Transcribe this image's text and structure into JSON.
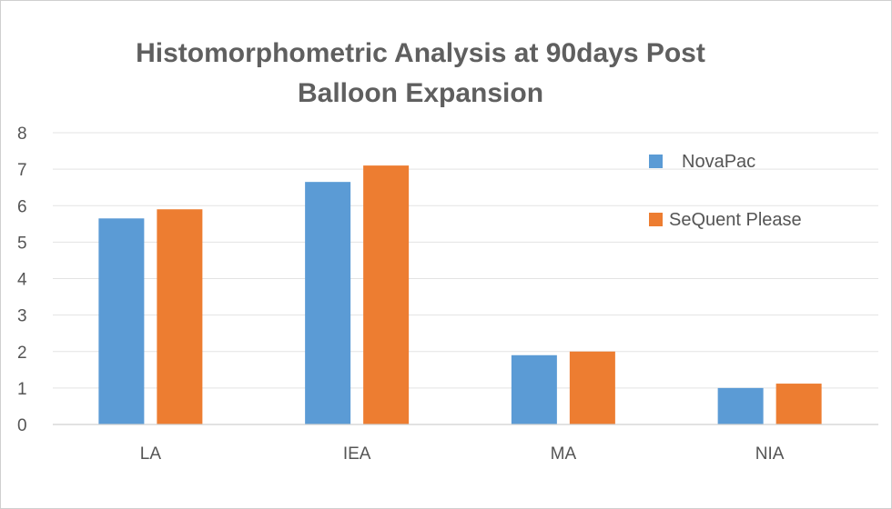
{
  "chart_data": {
    "type": "bar",
    "title_lines": [
      "Histomorphometric Analysis at 90days Post",
      "Balloon Expansion"
    ],
    "categories": [
      "LA",
      "IEA",
      "MA",
      "NIA"
    ],
    "series": [
      {
        "name": "NovaPac",
        "values": [
          5.65,
          6.65,
          1.9,
          1.0
        ],
        "color": "#5b9bd5"
      },
      {
        "name": "SeQuent Please",
        "values": [
          5.9,
          7.1,
          2.0,
          1.12
        ],
        "color": "#ed7d31"
      }
    ],
    "ylim": [
      0,
      8
    ],
    "yticks": [
      0,
      1,
      2,
      3,
      4,
      5,
      6,
      7,
      8
    ],
    "grid": true,
    "legend_position": "right"
  }
}
